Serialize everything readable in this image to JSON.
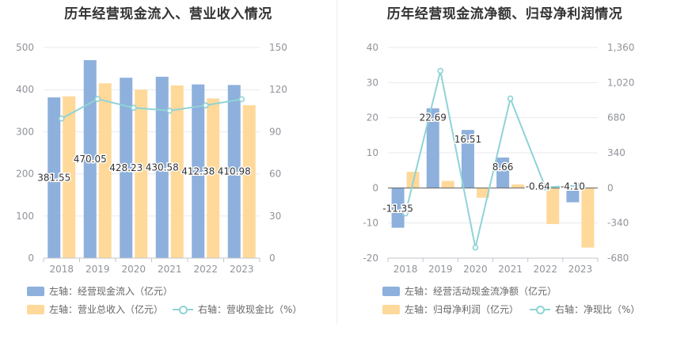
{
  "chart_data": [
    {
      "type": "bar",
      "title": "历年经营现金流入、营业收入情况",
      "categories": [
        "2018",
        "2019",
        "2020",
        "2021",
        "2022",
        "2023"
      ],
      "left_axis": {
        "min": 0,
        "max": 500,
        "ticks": [
          "0",
          "100",
          "200",
          "300",
          "400",
          "500"
        ]
      },
      "right_axis": {
        "min": 0,
        "max": 150,
        "ticks": [
          "0",
          "30",
          "60",
          "90",
          "120",
          "150"
        ]
      },
      "series": [
        {
          "name": "左轴：经营现金流入（亿元）",
          "kind": "bar",
          "axis": "left",
          "color": "#8eb0dc",
          "values": [
            381.55,
            470.05,
            428.23,
            430.58,
            412.38,
            410.98
          ],
          "labels": [
            "381.55",
            "470.05",
            "428.23",
            "430.58",
            "412.38",
            "410.98"
          ]
        },
        {
          "name": "左轴：营业总收入（亿元）",
          "kind": "bar",
          "axis": "left",
          "color": "#ffd99a",
          "values": [
            384,
            415,
            400,
            410,
            379,
            363
          ]
        },
        {
          "name": "右轴：营收现金比（%）",
          "kind": "line",
          "axis": "right",
          "color": "#8fd3d6",
          "values": [
            99.4,
            113.3,
            107.1,
            105.0,
            108.8,
            113.2
          ]
        }
      ]
    },
    {
      "type": "bar",
      "title": "历年经营现金流净额、归母净利润情况",
      "categories": [
        "2018",
        "2019",
        "2020",
        "2021",
        "2022",
        "2023"
      ],
      "left_axis": {
        "min": -20,
        "max": 40,
        "ticks": [
          "-20",
          "-10",
          "0",
          "10",
          "20",
          "30",
          "40"
        ]
      },
      "right_axis": {
        "min": -680,
        "max": 1360,
        "ticks": [
          "-680",
          "-340",
          "0",
          "340",
          "680",
          "1,020",
          "1,360"
        ]
      },
      "series": [
        {
          "name": "左轴：经营活动现金流净额（亿元）",
          "kind": "bar",
          "axis": "left",
          "color": "#8eb0dc",
          "values": [
            -11.35,
            22.69,
            16.51,
            8.66,
            -0.64,
            -4.1
          ],
          "labels": [
            "-11.35",
            "22.69",
            "16.51",
            "8.66",
            "-0.64",
            "-4.10"
          ]
        },
        {
          "name": "左轴：归母净利润（亿元）",
          "kind": "bar",
          "axis": "left",
          "color": "#ffd99a",
          "values": [
            4.6,
            2.0,
            -2.8,
            1.0,
            -10.3,
            -17.0
          ]
        },
        {
          "name": "右轴：净现比（%）",
          "kind": "line",
          "axis": "right",
          "color": "#8fd3d6",
          "values": [
            -247,
            1134,
            -578,
            866,
            6,
            24
          ]
        }
      ]
    }
  ]
}
